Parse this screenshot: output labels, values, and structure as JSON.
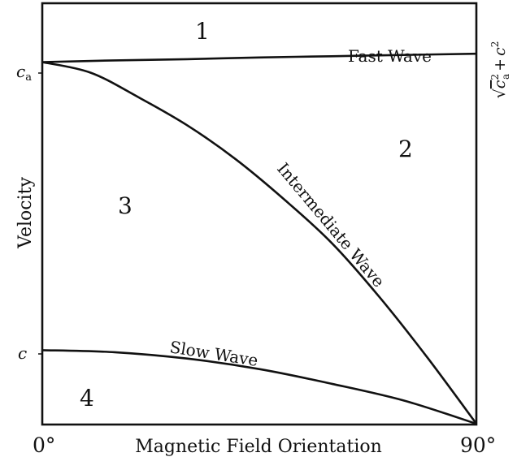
{
  "chart_data": {
    "type": "line",
    "title": "",
    "xlabel": "Magnetic Field Orientation",
    "ylabel": "Velocity",
    "x_ticks": [
      "0°",
      "90°"
    ],
    "y_ticks": {
      "c_a": "c",
      "c_a_sub": "a",
      "c": "c"
    },
    "right_label": {
      "sqrt": "√",
      "base1": "c",
      "sub": "a",
      "sup": "2",
      "plus": "+",
      "base2": "c",
      "sup2": "2"
    },
    "xlim": [
      0,
      90
    ],
    "ylim": [
      0,
      1.0
    ],
    "reference_values": {
      "c_a": 0.86,
      "c": 0.175,
      "sqrt_ca2_c2": 0.88
    },
    "series": [
      {
        "name": "Fast Wave",
        "x": [
          0,
          15,
          30,
          45,
          60,
          75,
          90
        ],
        "y": [
          0.86,
          0.864,
          0.867,
          0.871,
          0.874,
          0.877,
          0.88
        ]
      },
      {
        "name": "Intermediate Wave",
        "x": [
          0,
          10,
          20,
          30,
          40,
          50,
          60,
          70,
          80,
          90
        ],
        "y": [
          0.86,
          0.835,
          0.776,
          0.71,
          0.63,
          0.535,
          0.43,
          0.3,
          0.155,
          0.0
        ]
      },
      {
        "name": "Slow Wave",
        "x": [
          0,
          15,
          30,
          45,
          60,
          75,
          90
        ],
        "y": [
          0.175,
          0.17,
          0.155,
          0.13,
          0.095,
          0.055,
          0.0
        ]
      }
    ],
    "region_labels": [
      "1",
      "2",
      "3",
      "4"
    ]
  }
}
